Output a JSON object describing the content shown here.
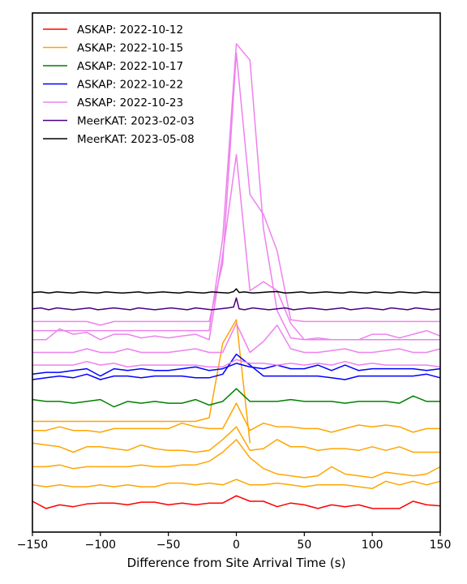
{
  "chart_data": {
    "type": "line",
    "title": "",
    "xlabel": "Difference from Site Arrival Time (s)",
    "ylabel": "",
    "xlim": [
      -150,
      150
    ],
    "x_ticks": [
      -150,
      -100,
      -50,
      0,
      50,
      100,
      150
    ],
    "x_tick_labels": [
      "−150",
      "−100",
      "−50",
      "0",
      "50",
      "100",
      "150"
    ],
    "grid": false,
    "legend_position": "top-left",
    "y_axis_ticks": false,
    "legend": [
      {
        "label": "ASKAP: 2022-10-12",
        "color": "#ff0000"
      },
      {
        "label": "ASKAP: 2022-10-15",
        "color": "#ffa500"
      },
      {
        "label": "ASKAP: 2022-10-17",
        "color": "#008000"
      },
      {
        "label": "ASKAP: 2022-10-22",
        "color": "#0000ff"
      },
      {
        "label": "ASKAP: 2022-10-23",
        "color": "#ee82ee"
      },
      {
        "label": "MeerKAT: 2023-02-03",
        "color": "#4b0082"
      },
      {
        "label": "MeerKAT: 2023-05-08",
        "color": "#000000"
      }
    ],
    "series": [
      {
        "color": "#ff0000",
        "offset": 0.0,
        "x": [
          -150,
          -140,
          -130,
          -120,
          -110,
          -100,
          -90,
          -80,
          -70,
          -60,
          -50,
          -40,
          -30,
          -20,
          -10,
          0,
          10,
          20,
          30,
          40,
          50,
          60,
          70,
          80,
          90,
          100,
          110,
          120,
          130,
          140,
          150
        ],
        "y": [
          0.1,
          -0.3,
          -0.1,
          -0.2,
          -0.05,
          0,
          0,
          -0.1,
          0.05,
          0.05,
          -0.1,
          0,
          -0.1,
          0,
          0,
          0.4,
          0.1,
          0.1,
          -0.2,
          0,
          -0.1,
          -0.3,
          -0.1,
          -0.2,
          -0.1,
          -0.3,
          -0.3,
          -0.3,
          0.1,
          -0.1,
          -0.15
        ]
      },
      {
        "color": "#ffa500",
        "offset": 1.0,
        "x": [
          -150,
          -140,
          -130,
          -120,
          -110,
          -100,
          -90,
          -80,
          -70,
          -60,
          -50,
          -40,
          -30,
          -20,
          -10,
          0,
          10,
          20,
          30,
          40,
          50,
          60,
          70,
          80,
          90,
          100,
          110,
          120,
          130,
          140,
          150
        ],
        "y": [
          0,
          -0.1,
          0,
          -0.1,
          -0.1,
          0,
          -0.1,
          0,
          -0.1,
          -0.1,
          0.1,
          0.1,
          0,
          0.1,
          0,
          0.3,
          0,
          0,
          0.1,
          0,
          -0.1,
          0,
          0,
          0,
          -0.1,
          -0.2,
          0.2,
          0,
          0.2,
          0,
          0.2
        ]
      },
      {
        "color": "#ffa500",
        "offset": 2.0,
        "x": [
          -150,
          -140,
          -130,
          -120,
          -110,
          -100,
          -90,
          -80,
          -70,
          -60,
          -50,
          -40,
          -30,
          -20,
          -10,
          0,
          10,
          20,
          30,
          40,
          50,
          60,
          70,
          80,
          90,
          100,
          110,
          120,
          130,
          140,
          150
        ],
        "y": [
          0,
          0,
          0.1,
          -0.1,
          0,
          0,
          0,
          0,
          0.1,
          0,
          0,
          0.1,
          0.1,
          0.3,
          0.8,
          1.5,
          0.5,
          -0.1,
          -0.4,
          -0.5,
          -0.6,
          -0.5,
          0,
          -0.4,
          -0.5,
          -0.6,
          -0.3,
          -0.4,
          -0.5,
          -0.4,
          0
        ]
      },
      {
        "color": "#ffa500",
        "offset": 3.0,
        "x": [
          -150,
          -140,
          -130,
          -120,
          -110,
          -100,
          -90,
          -80,
          -70,
          -60,
          -50,
          -40,
          -30,
          -20,
          -10,
          0,
          10,
          20,
          30,
          40,
          50,
          60,
          70,
          80,
          90,
          100,
          110,
          120,
          130,
          140,
          150
        ],
        "y": [
          0.3,
          0.2,
          0.1,
          -0.2,
          0.1,
          0.1,
          0,
          -0.1,
          0.2,
          0,
          -0.1,
          -0.1,
          -0.2,
          -0.1,
          0.5,
          1.2,
          -0.1,
          0,
          0.5,
          0.1,
          0.1,
          -0.1,
          0,
          0,
          -0.1,
          0.1,
          -0.1,
          0.1,
          -0.2,
          -0.2,
          -0.2
        ]
      },
      {
        "color": "#ffa500",
        "offset": 4.0,
        "x": [
          -150,
          -140,
          -130,
          -120,
          -110,
          -100,
          -90,
          -80,
          -70,
          -60,
          -50,
          -40,
          -30,
          -20,
          -10,
          0,
          10,
          20,
          30,
          40,
          50,
          60,
          70,
          80,
          90,
          100,
          110,
          120,
          130,
          140,
          150
        ],
        "y": [
          0,
          0,
          0.2,
          0,
          0,
          -0.1,
          0.1,
          0.1,
          0.1,
          0.1,
          0.1,
          0.4,
          0.2,
          0.1,
          0.1,
          1.5,
          0,
          0.4,
          0.2,
          0.2,
          0.1,
          0.1,
          -0.1,
          0.1,
          0.3,
          0.2,
          0.3,
          0.2,
          -0.1,
          0.1,
          0.1
        ]
      },
      {
        "color": "#ffa500",
        "offset": 4.5,
        "x": [
          -150,
          -140,
          -130,
          -120,
          -110,
          -100,
          -90,
          -80,
          -70,
          -60,
          -50,
          -40,
          -30,
          -20,
          -10,
          0,
          10
        ],
        "y": [
          0,
          0,
          0,
          0,
          0,
          0,
          0,
          0,
          0,
          0,
          0,
          0,
          0,
          0.2,
          4.3,
          5.6,
          -1.2
        ]
      },
      {
        "color": "#008000",
        "offset": 5.0,
        "x": [
          -150,
          -140,
          -130,
          -120,
          -110,
          -100,
          -90,
          -80,
          -70,
          -60,
          -50,
          -40,
          -30,
          -20,
          -10,
          0,
          10,
          20,
          30,
          40,
          50,
          60,
          70,
          80,
          90,
          100,
          110,
          120,
          130,
          140,
          150
        ],
        "y": [
          0.7,
          0.6,
          0.6,
          0.5,
          0.6,
          0.7,
          0.3,
          0.6,
          0.5,
          0.6,
          0.5,
          0.5,
          0.7,
          0.4,
          0.6,
          1.3,
          0.6,
          0.6,
          0.6,
          0.7,
          0.6,
          0.6,
          0.6,
          0.5,
          0.6,
          0.6,
          0.6,
          0.5,
          0.9,
          0.6,
          0.6
        ]
      },
      {
        "color": "#0000ff",
        "offset": 6.0,
        "x": [
          -150,
          -140,
          -130,
          -120,
          -110,
          -100,
          -90,
          -80,
          -70,
          -60,
          -50,
          -40,
          -30,
          -20,
          -10,
          0,
          10,
          20,
          30,
          40,
          50,
          60,
          70,
          80,
          90,
          100,
          110,
          120,
          130,
          140,
          150
        ],
        "y": [
          0.8,
          0.9,
          1,
          0.9,
          1.1,
          0.8,
          1,
          1,
          0.9,
          1,
          1,
          1,
          0.9,
          0.9,
          1.1,
          2.2,
          1.6,
          1,
          1,
          1,
          1,
          1,
          0.9,
          0.8,
          1,
          1,
          1,
          1,
          1,
          1.1,
          0.9
        ]
      },
      {
        "color": "#0000ff",
        "offset": 6.8,
        "x": [
          -150,
          -140,
          -130,
          -120,
          -110,
          -100,
          -90,
          -80,
          -70,
          -60,
          -50,
          -40,
          -30,
          -20,
          -10,
          0,
          10,
          20,
          30,
          40,
          50,
          60,
          70,
          80,
          90,
          100,
          110,
          120,
          130,
          140,
          150
        ],
        "y": [
          0.3,
          0.4,
          0.4,
          0.5,
          0.6,
          0.2,
          0.6,
          0.5,
          0.6,
          0.5,
          0.5,
          0.6,
          0.7,
          0.5,
          0.6,
          0.9,
          0.7,
          0.6,
          0.8,
          0.6,
          0.6,
          0.8,
          0.5,
          0.8,
          0.5,
          0.6,
          0.6,
          0.6,
          0.6,
          0.5,
          0.6
        ]
      },
      {
        "color": "#ee82ee",
        "offset": 7.5,
        "x": [
          -150,
          -140,
          -130,
          -120,
          -110,
          -100,
          -90,
          -80,
          -70,
          -60,
          -50,
          -40,
          -30,
          -20,
          -10,
          0,
          10,
          20,
          30,
          40,
          50,
          60,
          70,
          80,
          90,
          100,
          110,
          120,
          130,
          140,
          150
        ],
        "y": [
          0.1,
          0.1,
          0.1,
          0.1,
          0.3,
          0.1,
          0.2,
          0,
          0.1,
          0.1,
          0.1,
          0.1,
          0.1,
          0,
          0,
          0.4,
          0.2,
          0.2,
          0.1,
          0.2,
          0.1,
          0.2,
          0.1,
          0.3,
          0.1,
          0.2,
          0.1,
          0.1,
          0.1,
          0.1,
          0
        ]
      },
      {
        "color": "#ee82ee",
        "offset": 8.3,
        "x": [
          -150,
          -140,
          -130,
          -120,
          -110,
          -100,
          -90,
          -80,
          -70,
          -60,
          -50,
          -40,
          -30,
          -20,
          -10,
          0,
          10,
          20,
          30,
          40,
          50,
          60,
          70,
          80,
          90,
          100,
          110,
          120,
          130,
          140,
          150
        ],
        "y": [
          0,
          0,
          0,
          0,
          0.2,
          0,
          0,
          0.2,
          0,
          0,
          0,
          0.1,
          0.2,
          0,
          0,
          1.6,
          0,
          0.6,
          1.5,
          0.2,
          0,
          0,
          0.1,
          0.2,
          0,
          0,
          0.1,
          0.2,
          0,
          0,
          0.2
        ]
      },
      {
        "color": "#ee82ee",
        "offset": 9.0,
        "x": [
          -150,
          -140,
          -130,
          -120,
          -110,
          -100,
          -90,
          -80,
          -70,
          -60,
          -50,
          -40,
          -30,
          -20,
          -10,
          0,
          10,
          20,
          30,
          40,
          50,
          60,
          70,
          80,
          90,
          100,
          110,
          120,
          130,
          140,
          150
        ],
        "y": [
          0,
          0,
          0.6,
          0.3,
          0.4,
          0,
          0.3,
          0.3,
          0.1,
          0.2,
          0.1,
          0.2,
          0.3,
          0,
          4.7,
          10.2,
          2.7,
          3.2,
          2.7,
          0.9,
          0,
          0.1,
          0,
          0,
          0,
          0.3,
          0.3,
          0.1,
          0.3,
          0.5,
          0.2
        ]
      },
      {
        "color": "#ee82ee",
        "offset": 10.0,
        "x": [
          -150,
          -140,
          -130,
          -120,
          -110,
          -100,
          -90,
          -80,
          -70,
          -60,
          -50,
          -40,
          -30,
          -20,
          -10,
          0,
          10,
          20,
          30,
          40,
          50,
          60,
          70,
          80,
          90,
          100,
          110,
          120,
          130,
          140,
          150
        ],
        "y": [
          0,
          0,
          0,
          0,
          0,
          -0.2,
          0,
          0,
          0,
          0,
          0,
          0,
          0,
          0,
          3.2,
          14.8,
          7,
          5.9,
          3.9,
          0.1,
          0,
          0,
          0,
          0,
          0,
          0,
          0,
          0,
          0,
          0,
          0
        ]
      },
      {
        "color": "#ee82ee",
        "offset": 9.5,
        "x": [
          -150,
          -140,
          -130,
          -120,
          -110,
          -100,
          -90,
          -80,
          -70,
          -60,
          -50,
          -40,
          -30,
          -20,
          -10,
          0,
          10,
          20,
          30,
          40,
          50,
          60,
          70,
          80,
          90,
          100,
          110,
          120,
          130,
          140,
          150
        ],
        "y": [
          0,
          0,
          0,
          0,
          0,
          0,
          0,
          0,
          0,
          0,
          0,
          0,
          0,
          0,
          5.1,
          15.8,
          14.9,
          5.6,
          1.1,
          -0.4,
          -0.5,
          -0.5,
          -0.5,
          -0.5,
          -0.5,
          -0.5,
          -0.5,
          -0.5,
          -0.5,
          -0.5,
          -0.5
        ]
      },
      {
        "color": "#4b0082",
        "offset": 10.7,
        "x": [
          -150,
          -144,
          -138,
          -132,
          -126,
          -120,
          -114,
          -108,
          -102,
          -96,
          -90,
          -84,
          -78,
          -72,
          -66,
          -60,
          -54,
          -48,
          -42,
          -36,
          -30,
          -24,
          -18,
          -12,
          -6,
          -2,
          0,
          2,
          6,
          12,
          18,
          24,
          30,
          36,
          42,
          48,
          54,
          60,
          66,
          72,
          78,
          84,
          90,
          96,
          102,
          108,
          114,
          120,
          126,
          132,
          138,
          144,
          150
        ],
        "y": [
          0,
          0.05,
          -0.05,
          0.05,
          0,
          -0.05,
          0,
          0.05,
          -0.05,
          0,
          0.05,
          0,
          -0.05,
          0.05,
          0,
          -0.05,
          0,
          0.05,
          0,
          -0.05,
          0.05,
          0,
          -0.05,
          0,
          0.05,
          0.1,
          0.6,
          0,
          -0.05,
          0.05,
          0,
          -0.05,
          0,
          0.05,
          -0.05,
          0,
          0.05,
          0,
          -0.05,
          0,
          0.05,
          -0.05,
          0,
          0.05,
          0,
          -0.05,
          0.05,
          0,
          -0.05,
          0.05,
          0,
          -0.05,
          0
        ]
      },
      {
        "color": "#000000",
        "offset": 11.6,
        "x": [
          -150,
          -144,
          -138,
          -132,
          -126,
          -120,
          -114,
          -108,
          -102,
          -96,
          -90,
          -84,
          -78,
          -72,
          -66,
          -60,
          -54,
          -48,
          -42,
          -36,
          -30,
          -24,
          -18,
          -12,
          -6,
          -2,
          0,
          2,
          6,
          12,
          18,
          24,
          30,
          36,
          42,
          48,
          54,
          60,
          66,
          72,
          78,
          84,
          90,
          96,
          102,
          108,
          114,
          120,
          126,
          132,
          138,
          144,
          150
        ],
        "y": [
          0,
          0.03,
          -0.03,
          0.03,
          0,
          -0.03,
          0.03,
          0,
          -0.03,
          0.03,
          0,
          -0.03,
          0,
          0.03,
          -0.03,
          0,
          0.03,
          0,
          -0.03,
          0.03,
          0,
          -0.03,
          0.03,
          0,
          -0.03,
          0.05,
          0.2,
          0,
          0.03,
          -0.03,
          0,
          0.03,
          0.05,
          -0.03,
          0,
          0.03,
          -0.03,
          0,
          0.03,
          0,
          -0.03,
          0.03,
          0,
          -0.03,
          0.03,
          0,
          -0.03,
          0.03,
          0,
          -0.03,
          0.03,
          0,
          0
        ]
      }
    ],
    "ylim": [
      -1.6,
      27.0
    ]
  }
}
